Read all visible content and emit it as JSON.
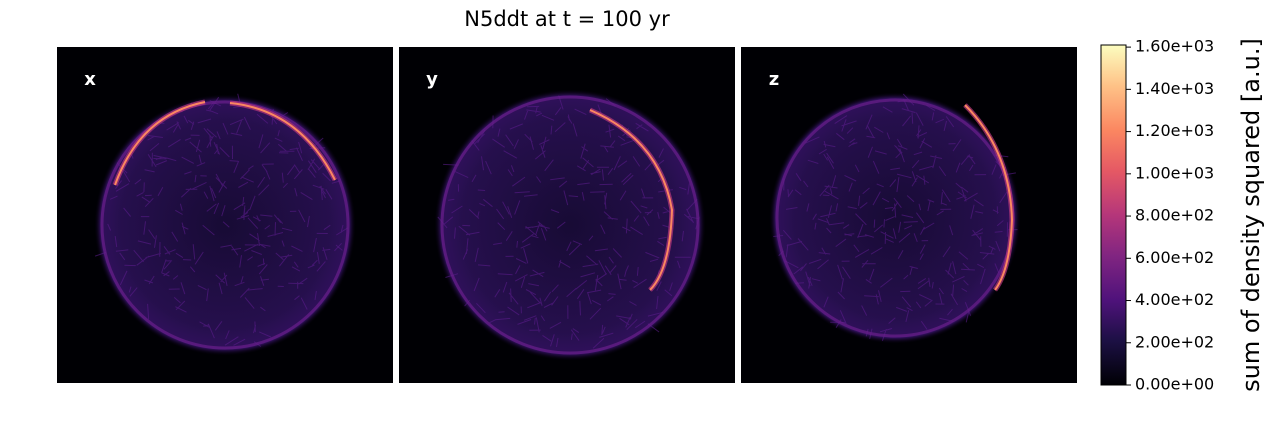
{
  "chart_data": {
    "type": "image-grid",
    "title": "N5ddt at t = 100 yr",
    "panels": [
      {
        "label": "x"
      },
      {
        "label": "y"
      },
      {
        "label": "z"
      }
    ],
    "colorbar": {
      "label": "sum of density squared [a.u.]",
      "colormap": "magma",
      "lim": [
        0,
        1610
      ],
      "ticks": [
        {
          "value": 0,
          "label": "0.00e+00"
        },
        {
          "value": 200,
          "label": "2.00e+02"
        },
        {
          "value": 400,
          "label": "4.00e+02"
        },
        {
          "value": 600,
          "label": "6.00e+02"
        },
        {
          "value": 800,
          "label": "8.00e+02"
        },
        {
          "value": 1000,
          "label": "1.00e+03"
        },
        {
          "value": 1200,
          "label": "1.20e+03"
        },
        {
          "value": 1400,
          "label": "1.40e+03"
        },
        {
          "value": 1600,
          "label": "1.60e+03"
        }
      ]
    }
  }
}
